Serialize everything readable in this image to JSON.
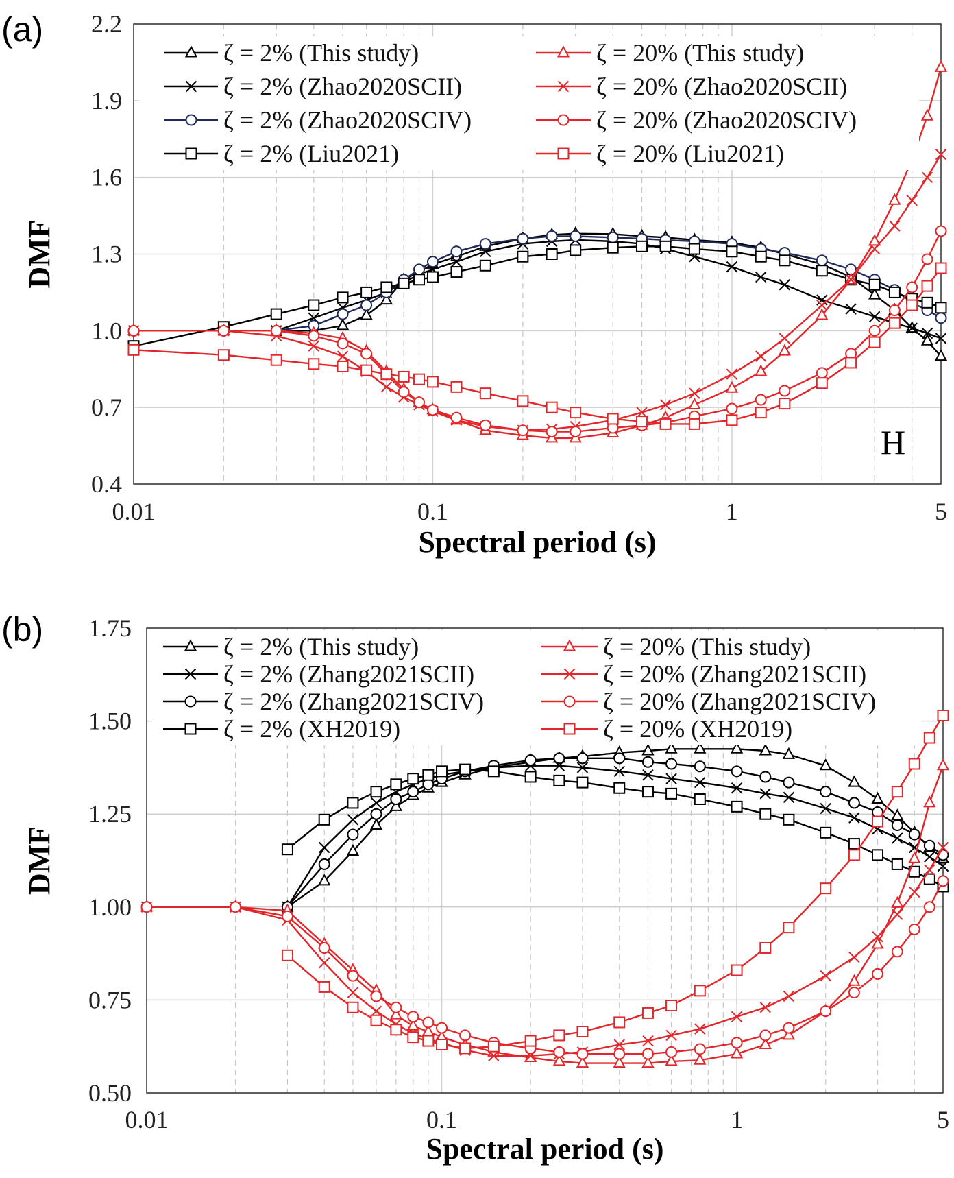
{
  "colors": {
    "black": "#000000",
    "red": "#e3262a",
    "navy": "#1f2a5a",
    "grid": "#d0d0d0"
  },
  "chart_data": [
    {
      "type": "line",
      "panel_label": "(a)",
      "annotation": "H",
      "xlabel": "Spectral period (s)",
      "ylabel": "DMF",
      "xscale": "log",
      "xlim": [
        0.01,
        5
      ],
      "ylim": [
        0.4,
        2.2
      ],
      "xticks": [
        "0.01",
        "0.1",
        "1",
        "5"
      ],
      "xtick_values": [
        0.01,
        0.1,
        1,
        5
      ],
      "yticks": [
        "0.4",
        "0.7",
        "1.0",
        "1.3",
        "1.6",
        "1.9",
        "2.2"
      ],
      "ytick_values": [
        0.4,
        0.7,
        1.0,
        1.3,
        1.6,
        1.9,
        2.2
      ],
      "grid": true,
      "legend_position": "top",
      "x": [
        0.01,
        0.02,
        0.03,
        0.04,
        0.05,
        0.06,
        0.07,
        0.08,
        0.09,
        0.1,
        0.12,
        0.15,
        0.2,
        0.25,
        0.3,
        0.4,
        0.5,
        0.6,
        0.75,
        1,
        1.25,
        1.5,
        2,
        2.5,
        3,
        3.5,
        4,
        4.5,
        5
      ],
      "series": [
        {
          "name": "ζ = 2% (This study)",
          "color": "#000000",
          "marker": "triangle",
          "values": [
            1.0,
            1.0,
            1.0,
            1.0,
            1.02,
            1.06,
            1.12,
            1.2,
            1.23,
            1.26,
            1.29,
            1.33,
            1.36,
            1.375,
            1.38,
            1.378,
            1.37,
            1.365,
            1.355,
            1.345,
            1.325,
            1.3,
            1.26,
            1.21,
            1.14,
            1.08,
            1.01,
            0.96,
            0.9
          ]
        },
        {
          "name": "ζ = 2% (Zhao2020SCII)",
          "color": "#000000",
          "marker": "x",
          "values": [
            1.0,
            1.0,
            1.0,
            1.05,
            1.09,
            1.12,
            1.15,
            1.19,
            1.22,
            1.24,
            1.27,
            1.31,
            1.34,
            1.35,
            1.355,
            1.35,
            1.34,
            1.32,
            1.29,
            1.25,
            1.21,
            1.18,
            1.12,
            1.085,
            1.055,
            1.03,
            1.01,
            0.99,
            0.97
          ]
        },
        {
          "name": "ζ = 2% (Zhao2020SCIV)",
          "color": "#1f2a5a",
          "marker": "circle",
          "values": [
            1.0,
            1.0,
            1.0,
            1.02,
            1.065,
            1.1,
            1.15,
            1.2,
            1.24,
            1.27,
            1.31,
            1.34,
            1.36,
            1.37,
            1.37,
            1.365,
            1.36,
            1.355,
            1.35,
            1.34,
            1.32,
            1.305,
            1.275,
            1.24,
            1.2,
            1.16,
            1.11,
            1.08,
            1.05
          ]
        },
        {
          "name": "ζ = 2% (Liu2021)",
          "color": "#000000",
          "marker": "square",
          "values": [
            0.94,
            1.015,
            1.065,
            1.1,
            1.13,
            1.15,
            1.17,
            1.185,
            1.2,
            1.21,
            1.23,
            1.255,
            1.29,
            1.3,
            1.315,
            1.325,
            1.33,
            1.33,
            1.32,
            1.31,
            1.29,
            1.275,
            1.235,
            1.2,
            1.18,
            1.15,
            1.125,
            1.11,
            1.09
          ]
        },
        {
          "name": "ζ = 20% (This study)",
          "color": "#e3262a",
          "marker": "triangle",
          "values": [
            1.0,
            1.0,
            1.0,
            0.99,
            0.97,
            0.92,
            0.84,
            0.77,
            0.72,
            0.69,
            0.65,
            0.61,
            0.59,
            0.58,
            0.58,
            0.6,
            0.63,
            0.66,
            0.71,
            0.775,
            0.84,
            0.92,
            1.06,
            1.2,
            1.35,
            1.51,
            1.67,
            1.84,
            2.03
          ]
        },
        {
          "name": "ζ = 20% (Zhao2020SCII)",
          "color": "#e3262a",
          "marker": "x",
          "values": [
            1.0,
            1.0,
            0.98,
            0.94,
            0.9,
            0.84,
            0.78,
            0.74,
            0.71,
            0.685,
            0.65,
            0.625,
            0.61,
            0.615,
            0.625,
            0.65,
            0.68,
            0.71,
            0.755,
            0.83,
            0.9,
            0.97,
            1.1,
            1.2,
            1.32,
            1.41,
            1.51,
            1.6,
            1.69
          ]
        },
        {
          "name": "ζ = 20% (Zhao2020SCIV)",
          "color": "#e3262a",
          "marker": "circle",
          "values": [
            1.0,
            1.0,
            1.0,
            0.98,
            0.95,
            0.91,
            0.83,
            0.76,
            0.72,
            0.69,
            0.66,
            0.63,
            0.61,
            0.605,
            0.605,
            0.62,
            0.63,
            0.64,
            0.665,
            0.695,
            0.73,
            0.765,
            0.835,
            0.91,
            1.0,
            1.08,
            1.17,
            1.28,
            1.39
          ]
        },
        {
          "name": "ζ = 20% (Liu2021)",
          "color": "#e3262a",
          "marker": "square",
          "values": [
            0.925,
            0.905,
            0.885,
            0.87,
            0.86,
            0.845,
            0.83,
            0.82,
            0.81,
            0.8,
            0.78,
            0.755,
            0.725,
            0.7,
            0.68,
            0.655,
            0.645,
            0.635,
            0.635,
            0.65,
            0.68,
            0.715,
            0.795,
            0.875,
            0.955,
            1.03,
            1.1,
            1.175,
            1.245
          ]
        }
      ]
    },
    {
      "type": "line",
      "panel_label": "(b)",
      "xlabel": "Spectral period (s)",
      "ylabel": "DMF",
      "xscale": "log",
      "xlim": [
        0.01,
        5
      ],
      "ylim": [
        0.5,
        1.75
      ],
      "xticks": [
        "0.01",
        "0.1",
        "1",
        "5"
      ],
      "xtick_values": [
        0.01,
        0.1,
        1,
        5
      ],
      "yticks": [
        "0.50",
        "0.75",
        "1.00",
        "1.25",
        "1.50",
        "1.75"
      ],
      "ytick_values": [
        0.5,
        0.75,
        1.0,
        1.25,
        1.5,
        1.75
      ],
      "grid": true,
      "legend_position": "top",
      "x": [
        0.01,
        0.02,
        0.03,
        0.04,
        0.05,
        0.06,
        0.07,
        0.08,
        0.09,
        0.1,
        0.12,
        0.15,
        0.2,
        0.25,
        0.3,
        0.4,
        0.5,
        0.6,
        0.75,
        1,
        1.25,
        1.5,
        2,
        2.5,
        3,
        3.5,
        4,
        4.5,
        5
      ],
      "series": [
        {
          "name": "ζ = 2% (This study)",
          "color": "#000000",
          "marker": "triangle",
          "values": [
            null,
            null,
            1.0,
            1.07,
            1.15,
            1.22,
            1.27,
            1.3,
            1.32,
            1.335,
            1.355,
            1.375,
            1.39,
            1.4,
            1.405,
            1.415,
            1.42,
            1.425,
            1.425,
            1.425,
            1.42,
            1.41,
            1.38,
            1.335,
            1.29,
            1.245,
            1.2,
            1.16,
            1.13
          ]
        },
        {
          "name": "ζ = 2% (Zhang2021SCII)",
          "color": "#000000",
          "marker": "x",
          "values": [
            null,
            null,
            1.0,
            1.16,
            1.235,
            1.28,
            1.31,
            1.33,
            1.345,
            1.355,
            1.365,
            1.375,
            1.38,
            1.38,
            1.375,
            1.365,
            1.355,
            1.345,
            1.335,
            1.32,
            1.305,
            1.295,
            1.265,
            1.24,
            1.21,
            1.185,
            1.16,
            1.135,
            1.11
          ]
        },
        {
          "name": "ζ = 2% (Zhang2021SCIV)",
          "color": "#000000",
          "marker": "circle",
          "values": [
            null,
            null,
            1.0,
            1.115,
            1.195,
            1.25,
            1.29,
            1.31,
            1.33,
            1.345,
            1.365,
            1.38,
            1.395,
            1.4,
            1.4,
            1.4,
            1.39,
            1.385,
            1.378,
            1.365,
            1.35,
            1.335,
            1.31,
            1.28,
            1.255,
            1.22,
            1.195,
            1.165,
            1.14
          ]
        },
        {
          "name": "ζ = 2% (XH2019)",
          "color": "#000000",
          "marker": "square",
          "values": [
            null,
            null,
            1.155,
            1.235,
            1.28,
            1.31,
            1.33,
            1.345,
            1.355,
            1.365,
            1.37,
            1.365,
            1.35,
            1.34,
            1.335,
            1.32,
            1.31,
            1.305,
            1.29,
            1.27,
            1.25,
            1.235,
            1.2,
            1.17,
            1.14,
            1.115,
            1.095,
            1.075,
            1.055
          ]
        },
        {
          "name": "ζ = 20% (This study)",
          "color": "#e3262a",
          "marker": "triangle",
          "values": [
            1.0,
            1.0,
            0.99,
            0.9,
            0.83,
            0.775,
            0.71,
            0.68,
            0.665,
            0.65,
            0.63,
            0.61,
            0.595,
            0.585,
            0.58,
            0.58,
            0.58,
            0.585,
            0.588,
            0.605,
            0.63,
            0.655,
            0.72,
            0.8,
            0.9,
            1.01,
            1.13,
            1.28,
            1.38
          ]
        },
        {
          "name": "ζ = 20% (Zhang2021SCII)",
          "color": "#e3262a",
          "marker": "x",
          "values": [
            1.0,
            1.0,
            0.965,
            0.85,
            0.77,
            0.72,
            0.685,
            0.66,
            0.645,
            0.635,
            0.615,
            0.6,
            0.6,
            0.605,
            0.61,
            0.63,
            0.64,
            0.655,
            0.672,
            0.705,
            0.73,
            0.76,
            0.815,
            0.865,
            0.92,
            0.98,
            1.04,
            1.1,
            1.16
          ]
        },
        {
          "name": "ζ = 20% (Zhang2021SCIV)",
          "color": "#e3262a",
          "marker": "circle",
          "values": [
            1.0,
            1.0,
            0.975,
            0.89,
            0.815,
            0.76,
            0.73,
            0.705,
            0.69,
            0.675,
            0.655,
            0.635,
            0.62,
            0.61,
            0.605,
            0.605,
            0.605,
            0.61,
            0.618,
            0.635,
            0.655,
            0.675,
            0.72,
            0.77,
            0.82,
            0.88,
            0.94,
            1.0,
            1.07
          ]
        },
        {
          "name": "ζ = 20% (XH2019)",
          "color": "#e3262a",
          "marker": "square",
          "values": [
            null,
            null,
            0.87,
            0.785,
            0.73,
            0.695,
            0.67,
            0.65,
            0.64,
            0.63,
            0.62,
            0.625,
            0.64,
            0.655,
            0.665,
            0.69,
            0.715,
            0.735,
            0.775,
            0.83,
            0.89,
            0.945,
            1.05,
            1.14,
            1.23,
            1.31,
            1.385,
            1.455,
            1.515
          ]
        }
      ]
    }
  ]
}
